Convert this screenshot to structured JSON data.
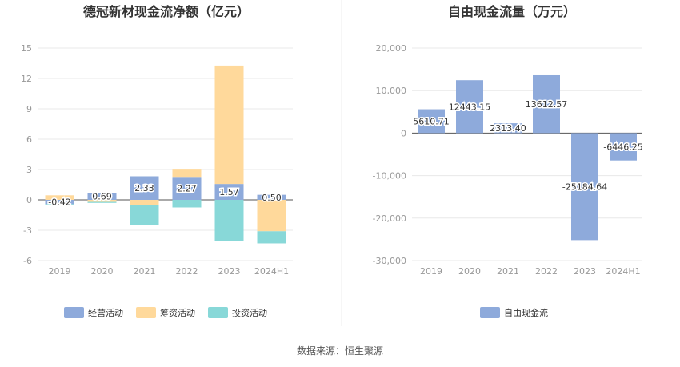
{
  "source_text": "数据来源：恒生聚源",
  "chart_data": [
    {
      "type": "bar",
      "stacked": true,
      "title": "德冠新材现金流净额（亿元）",
      "categories": [
        "2019",
        "2020",
        "2021",
        "2022",
        "2023",
        "2024H1"
      ],
      "ylim": [
        -6,
        15
      ],
      "yticks": [
        "15",
        "12",
        "9",
        "6",
        "3",
        "0",
        "-3",
        "-6"
      ],
      "grid": true,
      "legend_position": "bottom",
      "series": [
        {
          "name": "经营活动",
          "color": "#8eaadb",
          "values": [
            -0.42,
            0.69,
            2.33,
            2.27,
            1.57,
            0.5
          ],
          "labels": [
            "-0.42",
            "0.69",
            "2.33",
            "2.27",
            "1.57",
            "0.50"
          ]
        },
        {
          "name": "筹资活动",
          "color": "#ffd99b",
          "values": [
            0.45,
            -0.2,
            -0.55,
            0.8,
            11.7,
            -3.1
          ],
          "labels": []
        },
        {
          "name": "投资活动",
          "color": "#88d8d8",
          "values": [
            -0.1,
            -0.1,
            -1.95,
            -0.75,
            -4.1,
            -1.2
          ],
          "labels": []
        }
      ]
    },
    {
      "type": "bar",
      "title": "自由现金流量（万元）",
      "categories": [
        "2019",
        "2020",
        "2021",
        "2022",
        "2023",
        "2024H1"
      ],
      "ylim": [
        -30000,
        20000
      ],
      "yticks": [
        "20,000",
        "10,000",
        "0",
        "-10,000",
        "-20,000",
        "-30,000"
      ],
      "grid": true,
      "legend_position": "bottom",
      "series": [
        {
          "name": "自由现金流",
          "color": "#8eaadb",
          "values": [
            5610.71,
            12443.15,
            2313.4,
            13612.57,
            -25184.64,
            -6446.25
          ],
          "labels": [
            "5610.71",
            "12443.15",
            "2313.40",
            "13612.57",
            "-25184.64",
            "-6446.25"
          ]
        }
      ]
    }
  ]
}
